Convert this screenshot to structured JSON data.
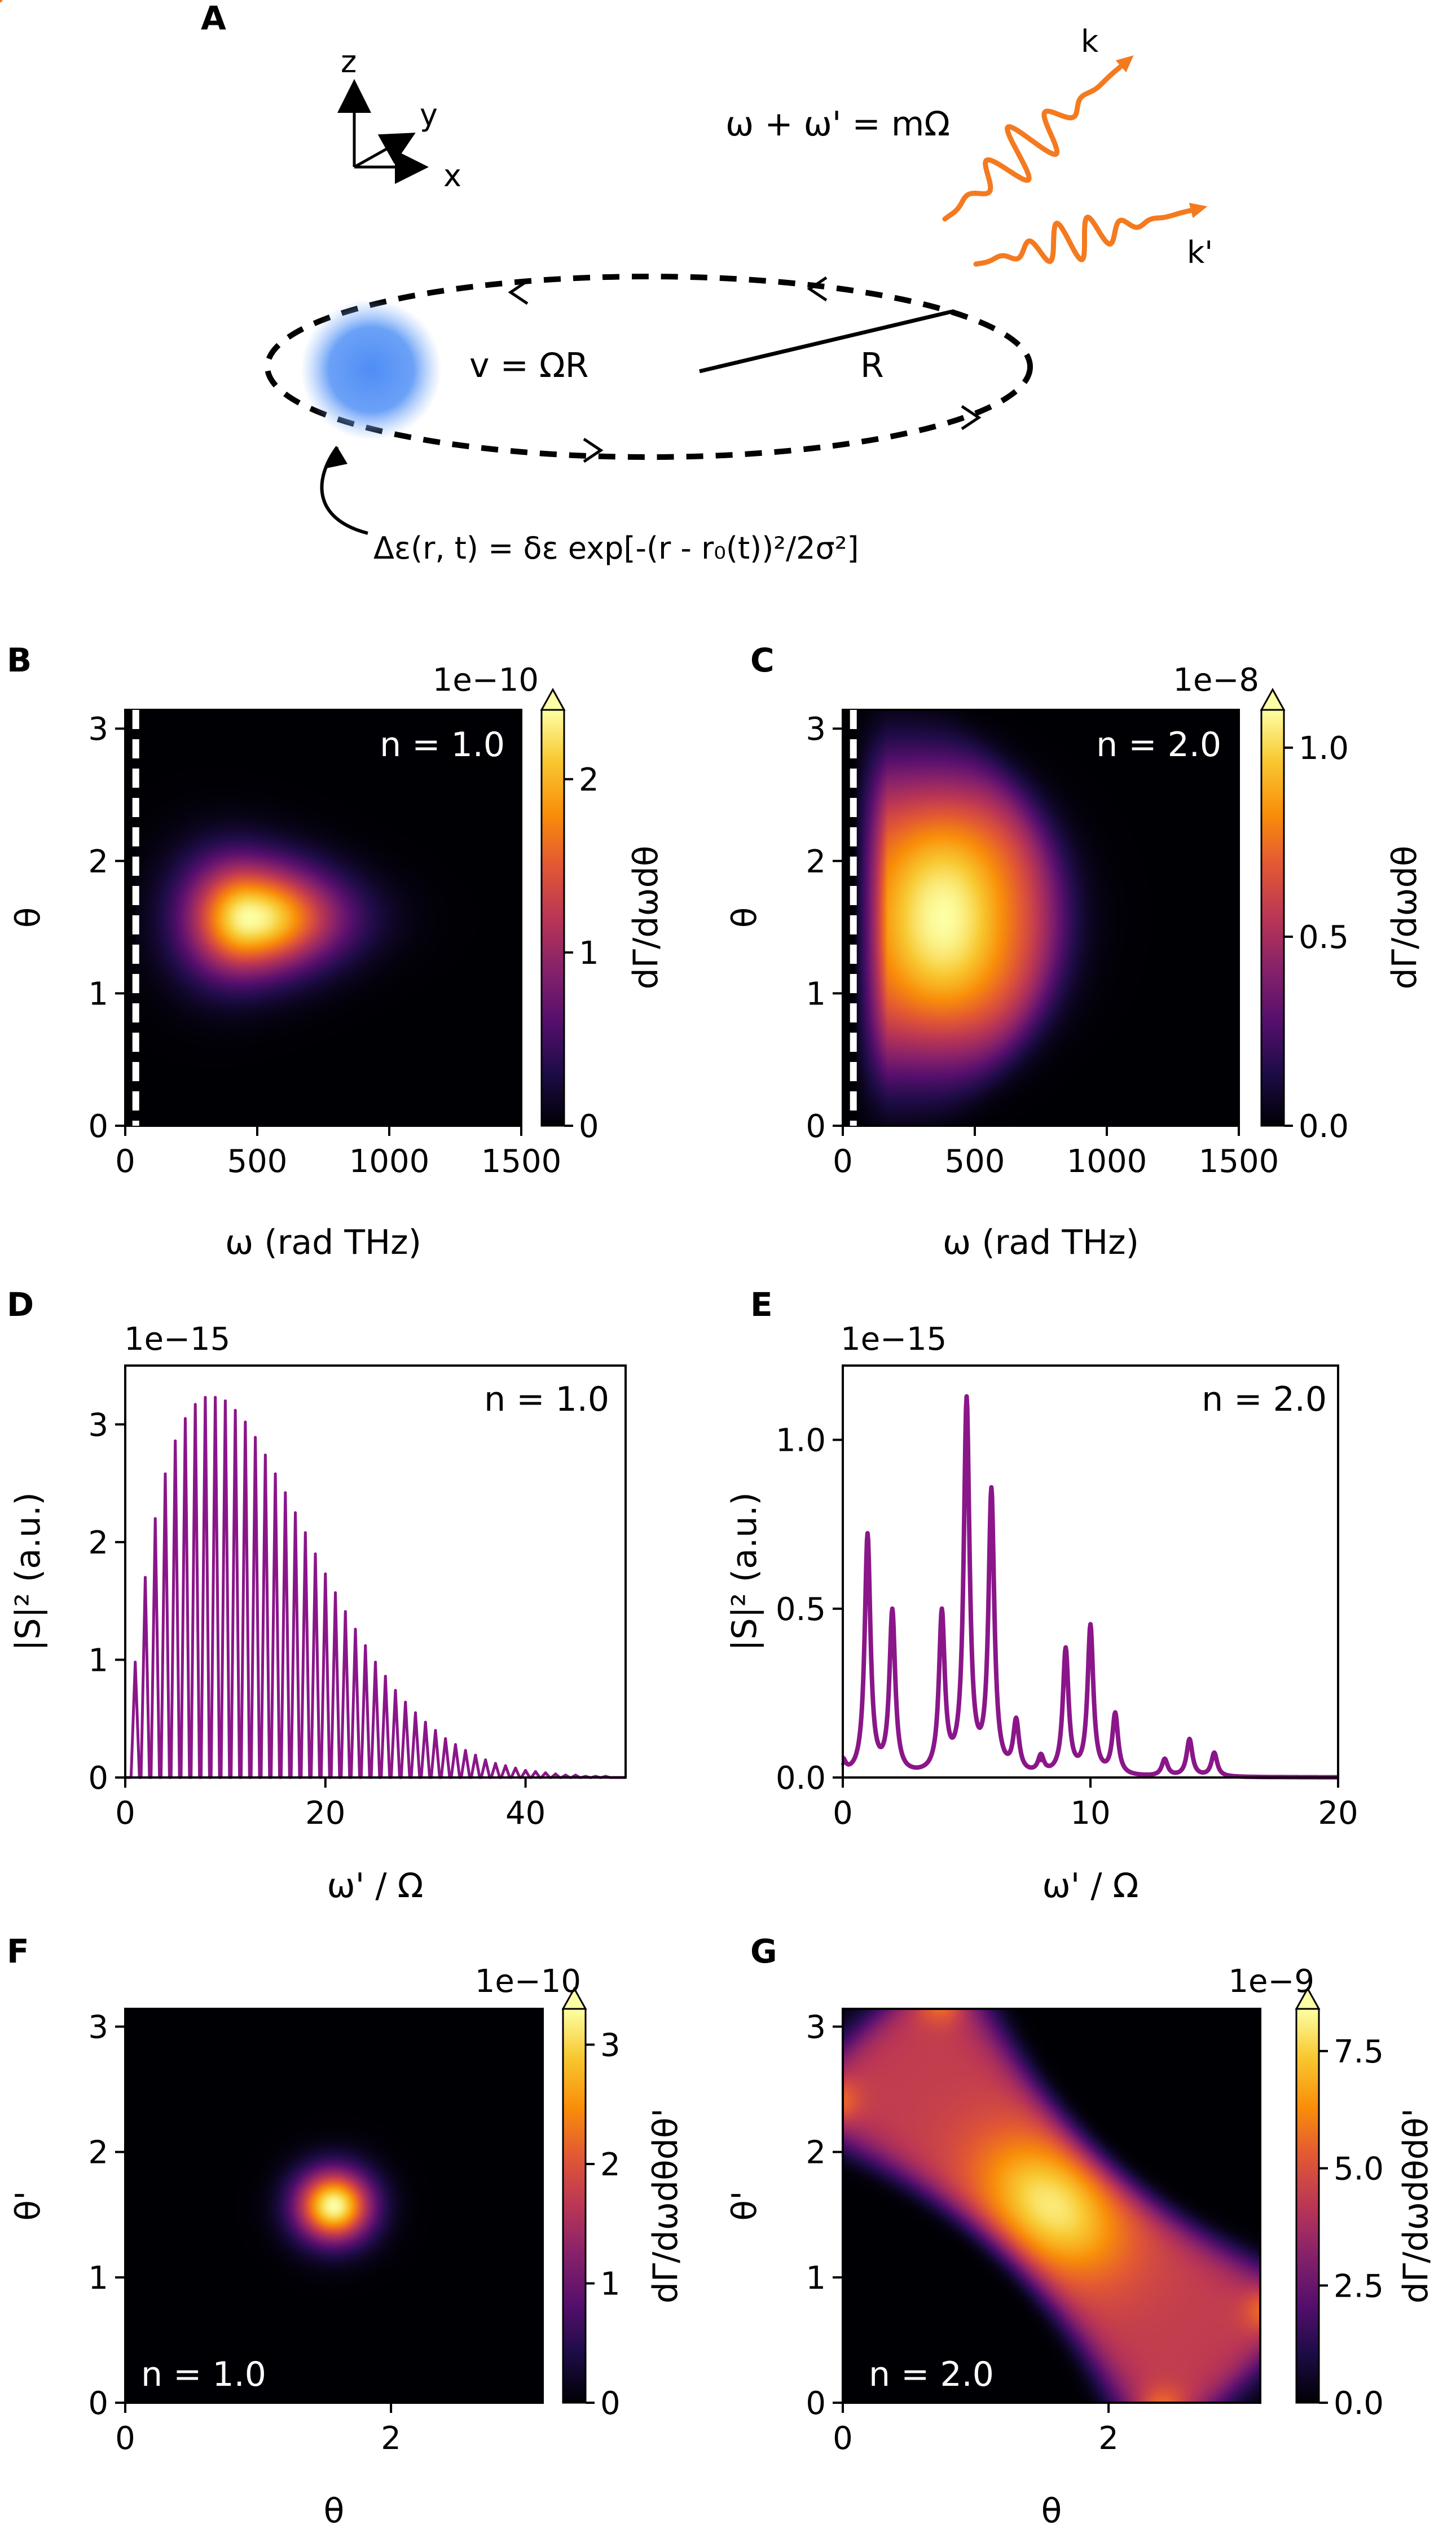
{
  "panel_letters": [
    "A",
    "B",
    "C",
    "D",
    "E",
    "F",
    "G"
  ],
  "colors": {
    "accent_orange": "#f47a20",
    "series_purple": "#8a1689",
    "blob_blue": "#4f8df5",
    "map": "inferno"
  },
  "schematic": {
    "axes": {
      "z": "z",
      "y": "y",
      "x": "x"
    },
    "equation_top": "ω + ω' = mΩ",
    "velocity": "v = ΩR",
    "radius": "R",
    "k": "k",
    "kprime": "k'",
    "perturbation": "Δε(r, t) = δε exp[-(r - r₀(t))²/2σ²]"
  },
  "chart_data": [
    {
      "id": "B",
      "type": "heatmap",
      "xlabel": "ω (rad THz)",
      "ylabel": "θ",
      "cbar_label": "dΓ/dωdθ",
      "annotation": "n = 1.0",
      "cbar_multiplier": "1e−10",
      "xlim": [
        0,
        1500
      ],
      "ylim": [
        0,
        3.14159
      ],
      "clim": [
        0,
        2.4
      ],
      "xticks": [
        "0",
        "500",
        "1000",
        "1500"
      ],
      "yticks": [
        "0",
        "1",
        "2",
        "3"
      ],
      "cbar_ticks": [
        "0",
        "1",
        "2"
      ],
      "cbar_tick_values": [
        0,
        1,
        2
      ],
      "cutoff_line_x": 40,
      "peak": {
        "omega": 470,
        "theta": 1.57,
        "value": 2.4
      }
    },
    {
      "id": "C",
      "type": "heatmap",
      "xlabel": "ω (rad THz)",
      "ylabel": "θ",
      "cbar_label": "dΓ/dωdθ",
      "annotation": "n = 2.0",
      "cbar_multiplier": "1e−8",
      "xlim": [
        0,
        1500
      ],
      "ylim": [
        0,
        3.14159
      ],
      "clim": [
        0,
        1.1
      ],
      "xticks": [
        "0",
        "500",
        "1000",
        "1500"
      ],
      "yticks": [
        "0",
        "1",
        "2",
        "3"
      ],
      "cbar_ticks": [
        "0.0",
        "0.5",
        "1.0"
      ],
      "cbar_tick_values": [
        0,
        0.5,
        1.0
      ],
      "cutoff_line_x": 40,
      "peak": {
        "omega": 380,
        "theta": 1.57,
        "value": 1.1
      }
    },
    {
      "id": "D",
      "type": "line",
      "xlabel": "ω' / Ω",
      "ylabel": "|S|² (a.u.)",
      "annotation": "n = 1.0",
      "multiplier": "1e−15",
      "xlim": [
        0,
        50
      ],
      "ylim": [
        0,
        3.5
      ],
      "xticks": [
        "0",
        "20",
        "40"
      ],
      "yticks": [
        "0",
        "1",
        "2",
        "3"
      ],
      "comb_spacing": 1,
      "peaks_x": [
        1,
        2,
        3,
        4,
        5,
        6,
        7,
        8,
        9,
        10,
        11,
        12,
        13,
        14,
        15,
        16,
        17,
        18,
        19,
        20,
        21,
        22,
        23,
        24,
        25,
        26,
        27,
        28,
        29,
        30,
        31,
        32,
        33,
        34,
        35,
        36,
        37,
        38,
        39,
        40,
        41,
        42,
        43,
        44,
        45,
        46,
        47,
        48,
        49
      ],
      "peaks_y": [
        0.98,
        1.7,
        2.2,
        2.58,
        2.86,
        3.05,
        3.17,
        3.23,
        3.23,
        3.2,
        3.12,
        3.02,
        2.89,
        2.74,
        2.58,
        2.42,
        2.25,
        2.08,
        1.9,
        1.73,
        1.57,
        1.41,
        1.26,
        1.12,
        0.98,
        0.86,
        0.74,
        0.64,
        0.55,
        0.47,
        0.4,
        0.33,
        0.28,
        0.23,
        0.19,
        0.15,
        0.12,
        0.1,
        0.08,
        0.06,
        0.05,
        0.04,
        0.03,
        0.02,
        0.02,
        0.01,
        0.01,
        0.01,
        0.0
      ]
    },
    {
      "id": "E",
      "type": "line",
      "xlabel": "ω' / Ω",
      "ylabel": "|S|² (a.u.)",
      "annotation": "n = 2.0",
      "multiplier": "1e−15",
      "xlim": [
        0,
        20
      ],
      "ylim": [
        0,
        1.22
      ],
      "xticks": [
        "0",
        "10",
        "20"
      ],
      "yticks": [
        "0.0",
        "0.5",
        "1.0"
      ],
      "peaks_x": [
        0,
        1,
        2,
        4,
        5,
        6,
        7,
        8,
        9,
        10,
        11,
        13,
        14,
        15
      ],
      "peaks_y": [
        0.04,
        0.71,
        0.48,
        0.47,
        1.1,
        0.83,
        0.15,
        0.05,
        0.37,
        0.44,
        0.18,
        0.05,
        0.11,
        0.07
      ]
    },
    {
      "id": "F",
      "type": "heatmap",
      "xlabel": "θ",
      "ylabel": "θ'",
      "cbar_label": "dΓ/dωdθdθ'",
      "annotation": "n = 1.0",
      "cbar_multiplier": "1e−10",
      "xlim": [
        0,
        3.14159
      ],
      "ylim": [
        0,
        3.14159
      ],
      "clim": [
        0,
        3.3
      ],
      "xticks": [
        "0",
        "2"
      ],
      "yticks": [
        "0",
        "1",
        "2",
        "3"
      ],
      "cbar_ticks": [
        "0",
        "1",
        "2",
        "3"
      ],
      "cbar_tick_values": [
        0,
        1,
        2,
        3
      ],
      "peak": {
        "theta": 1.57,
        "theta_prime": 1.57,
        "value": 3.3
      }
    },
    {
      "id": "G",
      "type": "heatmap",
      "xlabel": "θ",
      "ylabel": "θ'",
      "cbar_label": "dΓ/dωdθdθ'",
      "annotation": "n = 2.0",
      "cbar_multiplier": "1e−9",
      "xlim": [
        0,
        3.14159
      ],
      "ylim": [
        0,
        3.14159
      ],
      "clim": [
        0,
        8.4
      ],
      "xticks": [
        "0",
        "2"
      ],
      "yticks": [
        "0",
        "1",
        "2",
        "3"
      ],
      "cbar_ticks": [
        "0.0",
        "2.5",
        "5.0",
        "7.5"
      ],
      "cbar_tick_values": [
        0,
        2.5,
        5.0,
        7.5
      ],
      "peak": {
        "theta": 1.57,
        "theta_prime": 1.57,
        "value": 8.4
      }
    }
  ]
}
